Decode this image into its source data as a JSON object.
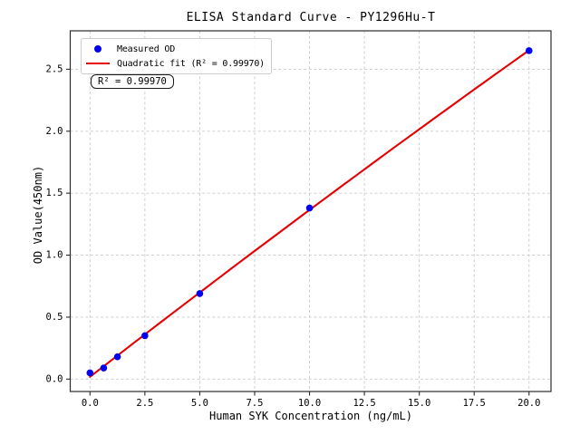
{
  "chart_data": {
    "type": "scatter",
    "title": "ELISA Standard Curve - PY1296Hu-T",
    "xlabel": "Human SYK Concentration (ng/mL)",
    "ylabel": "OD Value(450nm)",
    "xlim": [
      -0.9,
      21.0
    ],
    "ylim": [
      -0.1,
      2.81
    ],
    "xticks": {
      "values": [
        0.0,
        2.5,
        5.0,
        7.5,
        10.0,
        12.5,
        15.0,
        17.5,
        20.0
      ],
      "labels": [
        "0.0",
        "2.5",
        "5.0",
        "7.5",
        "10.0",
        "12.5",
        "15.0",
        "17.5",
        "20.0"
      ]
    },
    "yticks": {
      "values": [
        0.0,
        0.5,
        1.0,
        1.5,
        2.0,
        2.5
      ],
      "labels": [
        "0.0",
        "0.5",
        "1.0",
        "1.5",
        "2.0",
        "2.5"
      ]
    },
    "grid": {
      "visible": true,
      "style": "dashed",
      "color": "#c9c9c9"
    },
    "series": [
      {
        "name": "Measured OD",
        "type": "scatter",
        "marker": "circle",
        "color": "#0000ee",
        "x": [
          0,
          0.625,
          1.25,
          2.5,
          5,
          10,
          20
        ],
        "y": [
          0.05,
          0.09,
          0.18,
          0.35,
          0.69,
          1.38,
          2.65
        ]
      },
      {
        "name": "Quadratic fit (R² = 0.99970)",
        "type": "line",
        "fit": "quadratic",
        "color": "#e60000",
        "x_range": [
          0,
          20
        ],
        "r_squared": 0.9997
      }
    ],
    "legend": {
      "position": "upper left"
    },
    "annotations": [
      {
        "text": "R² = 0.99970"
      }
    ],
    "spine_color": "#2b2b2b",
    "tick_color": "#2b2b2b",
    "text_color": "#000000"
  }
}
